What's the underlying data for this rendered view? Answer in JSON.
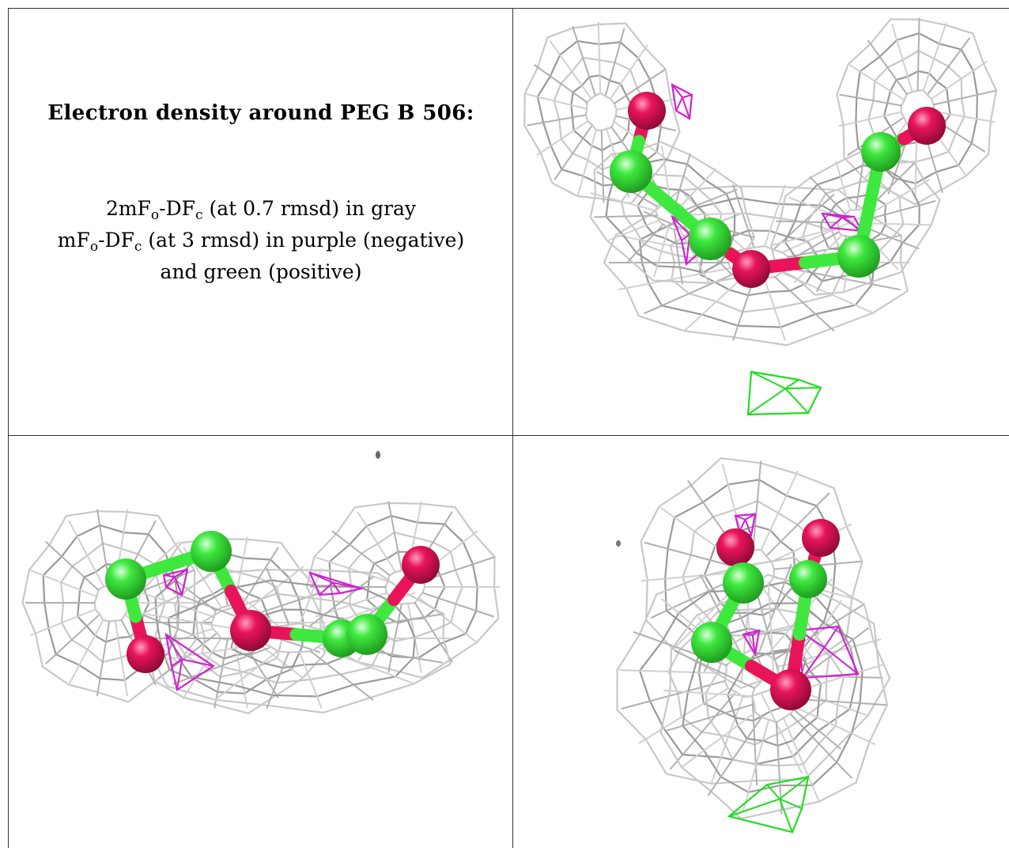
{
  "caption": {
    "title": "Electron density around PEG B 506:",
    "line1": {
      "prefix": "2mF",
      "sub1": "o",
      "mid": "-DF",
      "sub2": "c",
      "suffix": " (at 0.7 rmsd) in gray"
    },
    "line2": {
      "prefix": "mF",
      "sub1": "o",
      "mid": "-DF",
      "sub2": "c",
      "suffix": " (at 3 rmsd) in purple (negative)"
    },
    "line3": "and green (positive)"
  },
  "colors": {
    "carbon": "#3ee83e",
    "oxygen": "#e8145a",
    "mesh_2fofc": "#b4b4b4",
    "mesh_negative": "#d21fd2",
    "mesh_positive": "#22dd22",
    "border": "#333333"
  },
  "views": [
    {
      "name": "view-top-right"
    },
    {
      "name": "view-bottom-left"
    },
    {
      "name": "view-bottom-right"
    }
  ]
}
